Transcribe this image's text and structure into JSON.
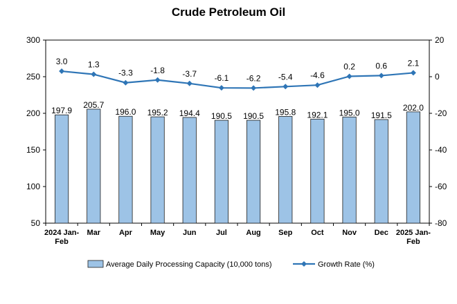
{
  "chart_data": {
    "type": "bar",
    "title": "Crude Petroleum Oil",
    "categories": [
      [
        "2024 Jan-",
        "Feb"
      ],
      [
        "Mar"
      ],
      [
        "Apr"
      ],
      [
        "May"
      ],
      [
        "Jun"
      ],
      [
        "Jul"
      ],
      [
        "Aug"
      ],
      [
        "Sep"
      ],
      [
        "Oct"
      ],
      [
        "Nov"
      ],
      [
        "Dec"
      ],
      [
        "2025 Jan-",
        "Feb"
      ]
    ],
    "series": [
      {
        "name": "Average Daily Processing Capacity (10,000 tons)",
        "type": "bar",
        "axis": "left",
        "color": "#9DC3E6",
        "values": [
          197.9,
          205.7,
          196.0,
          195.2,
          194.4,
          190.5,
          190.5,
          195.8,
          192.1,
          195.0,
          191.5,
          202.0
        ],
        "labels": [
          "197.9",
          "205.7",
          "196.0",
          "195.2",
          "194.4",
          "190.5",
          "190.5",
          "195.8",
          "192.1",
          "195.0",
          "191.5",
          "202.0"
        ]
      },
      {
        "name": "Growth Rate (%)",
        "type": "line",
        "axis": "right",
        "color": "#2E75B6",
        "values": [
          3.0,
          1.3,
          -3.3,
          -1.8,
          -3.7,
          -6.1,
          -6.2,
          -5.4,
          -4.6,
          0.2,
          0.6,
          2.1
        ],
        "labels": [
          "3.0",
          "1.3",
          "-3.3",
          "-1.8",
          "-3.7",
          "-6.1",
          "-6.2",
          "-5.4",
          "-4.6",
          "0.2",
          "0.6",
          "2.1"
        ]
      }
    ],
    "y_left": {
      "min": 50,
      "max": 300,
      "ticks": [
        "50",
        "100",
        "150",
        "200",
        "250",
        "300"
      ]
    },
    "y_right": {
      "min": -80,
      "max": 20,
      "ticks": [
        "-80",
        "-60",
        "-40",
        "-20",
        "0",
        "20"
      ]
    },
    "grid": false,
    "legend_position": "bottom"
  }
}
